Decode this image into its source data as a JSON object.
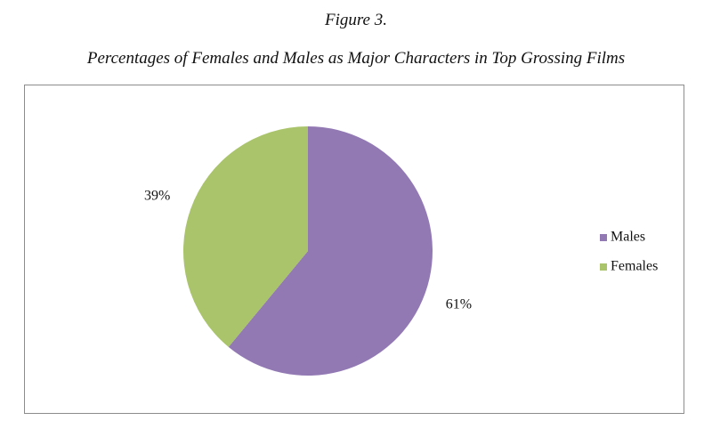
{
  "figure": {
    "label": "Figure 3.",
    "caption": "Percentages of Females and Males as Major Characters in Top Grossing Films"
  },
  "chart_data": {
    "type": "pie",
    "start_angle_deg": 0,
    "direction": "clockwise",
    "slices": [
      {
        "name": "Males",
        "value": 61,
        "label": "61%",
        "color": "#9279B4"
      },
      {
        "name": "Females",
        "value": 39,
        "label": "39%",
        "color": "#A9C46A"
      }
    ],
    "legend": {
      "position": "right",
      "entries": [
        "Males",
        "Females"
      ]
    }
  }
}
